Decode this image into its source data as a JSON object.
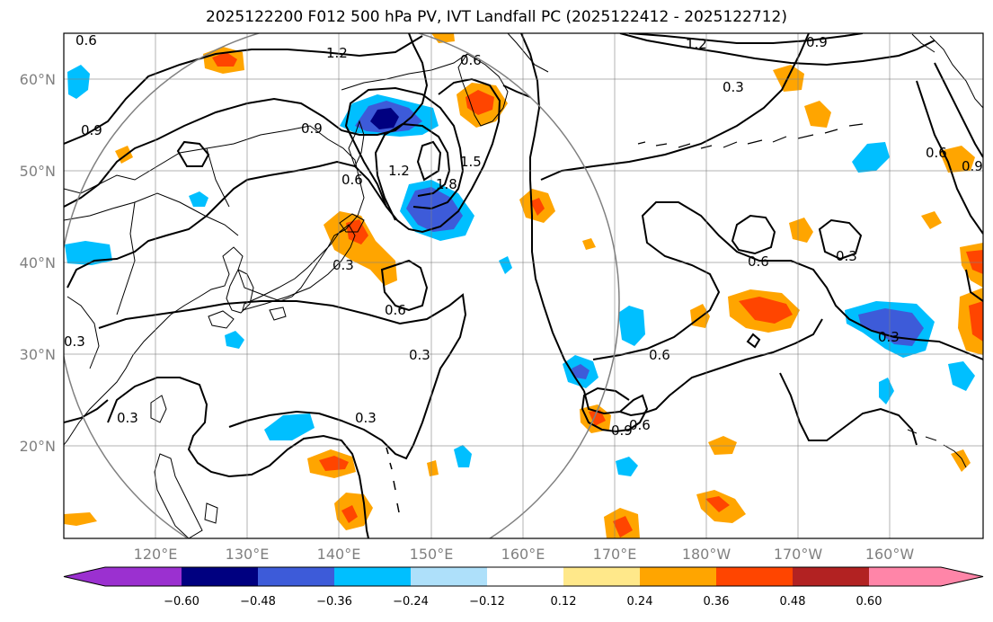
{
  "title": "2025122200 F012 500 hPa PV, IVT Landfall PC (2025122412 - 2025122712)",
  "axes": {
    "lon_ticks": [
      "120°E",
      "130°E",
      "140°E",
      "150°E",
      "160°E",
      "170°E",
      "180°W",
      "170°W",
      "160°W"
    ],
    "lat_ticks": [
      "60°N",
      "50°N",
      "40°N",
      "30°N",
      "20°N"
    ],
    "grid": true
  },
  "colorbar": {
    "ticks": [
      "−0.60",
      "−0.48",
      "−0.36",
      "−0.24",
      "−0.12",
      "0.12",
      "0.24",
      "0.36",
      "0.48",
      "0.60"
    ],
    "colors": [
      "#9b30d0",
      "#000080",
      "#3d5bd9",
      "#00bfff",
      "#aee0fa",
      "#ffffff",
      "#ffe88a",
      "#ffa500",
      "#ff4500",
      "#b22222",
      "#ff85a8"
    ]
  },
  "contour_labels": [
    "1.2",
    "0.6",
    "1.2",
    "0.9",
    "0.9",
    "0.3",
    "0.6",
    "0.9",
    "1.2",
    "1.5",
    "1.8",
    "0.6",
    "0.3",
    "0.6",
    "0.3",
    "0.3",
    "0.6",
    "0.6",
    "0.3",
    "0.3",
    "0.9",
    "0.6",
    "0.3",
    "0.9",
    "0.3",
    "0.6"
  ],
  "legend_circle": true
}
